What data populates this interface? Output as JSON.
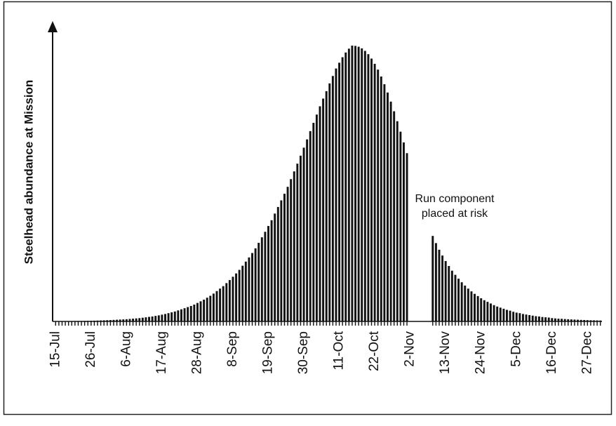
{
  "chart_data": {
    "type": "bar",
    "y_label": "Steelhead abundance at Mission",
    "annotation": [
      "Run component",
      "placed at risk"
    ],
    "color": "#111111",
    "ylim": [
      0,
      100
    ],
    "categories": [
      "15-Jul",
      null,
      null,
      null,
      null,
      null,
      null,
      null,
      null,
      null,
      null,
      "26-Jul",
      null,
      null,
      null,
      null,
      null,
      null,
      null,
      null,
      null,
      null,
      "6-Aug",
      null,
      null,
      null,
      null,
      null,
      null,
      null,
      null,
      null,
      null,
      "17-Aug",
      null,
      null,
      null,
      null,
      null,
      null,
      null,
      null,
      null,
      null,
      "28-Aug",
      null,
      null,
      null,
      null,
      null,
      null,
      null,
      null,
      null,
      null,
      "8-Sep",
      null,
      null,
      null,
      null,
      null,
      null,
      null,
      null,
      null,
      null,
      "19-Sep",
      null,
      null,
      null,
      null,
      null,
      null,
      null,
      null,
      null,
      null,
      "30-Sep",
      null,
      null,
      null,
      null,
      null,
      null,
      null,
      null,
      null,
      null,
      "11-Oct",
      null,
      null,
      null,
      null,
      null,
      null,
      null,
      null,
      null,
      null,
      "22-Oct",
      null,
      null,
      null,
      null,
      null,
      null,
      null,
      null,
      null,
      null,
      "2-Nov",
      null,
      null,
      null,
      null,
      null,
      null,
      null,
      null,
      null,
      null,
      "13-Nov",
      null,
      null,
      null,
      null,
      null,
      null,
      null,
      null,
      null,
      null,
      "24-Nov",
      null,
      null,
      null,
      null,
      null,
      null,
      null,
      null,
      null,
      null,
      "5-Dec",
      null,
      null,
      null,
      null,
      null,
      null,
      null,
      null,
      null,
      null,
      "16-Dec",
      null,
      null,
      null,
      null,
      null,
      null,
      null,
      null,
      null,
      null,
      "27-Dec",
      null,
      null,
      null,
      null
    ],
    "values": [
      0.07,
      0.08,
      0.09,
      0.1,
      0.11,
      0.12,
      0.14,
      0.16,
      0.18,
      0.2,
      0.22,
      0.25,
      0.28,
      0.32,
      0.36,
      0.4,
      0.45,
      0.5,
      0.56,
      0.62,
      0.68,
      0.74,
      0.81,
      0.9,
      1.0,
      1.1,
      1.2,
      1.35,
      1.5,
      1.65,
      1.8,
      2.0,
      2.2,
      2.45,
      2.7,
      3.0,
      3.3,
      3.6,
      4.0,
      4.4,
      4.8,
      5.2,
      5.6,
      6.1,
      6.7,
      7.3,
      7.9,
      8.6,
      9.3,
      10.1,
      11.0,
      11.9,
      12.8,
      13.9,
      15.0,
      16.2,
      17.4,
      18.7,
      20.2,
      21.7,
      23.2,
      24.8,
      26.5,
      28.5,
      30.5,
      32.5,
      34.6,
      36.7,
      39.1,
      41.5,
      43.9,
      46.3,
      48.8,
      51.6,
      54.4,
      57.2,
      60.1,
      63,
      66,
      69,
      72,
      75,
      78,
      80.8,
      83.5,
      86.3,
      89,
      91.7,
      93.8,
      95.8,
      97.5,
      98.9,
      100,
      99.9,
      99.6,
      99.0,
      98.1,
      96.9,
      95.3,
      93.4,
      91.3,
      88.8,
      86,
      83,
      79.7,
      76.2,
      72.6,
      68.8,
      64.9,
      61.0,
      null,
      null,
      null,
      null,
      null,
      null,
      null,
      31,
      28.4,
      26.0,
      23.9,
      21.9,
      20.1,
      18.4,
      16.9,
      15.5,
      14.2,
      13.0,
      11.9,
      10.9,
      10.0,
      9.2,
      8.4,
      7.7,
      7.1,
      6.5,
      5.9,
      5.4,
      5.0,
      4.6,
      4.2,
      3.9,
      3.5,
      3.2,
      3.0,
      2.7,
      2.5,
      2.3,
      2.1,
      1.9,
      1.8,
      1.6,
      1.5,
      1.4,
      1.2,
      1.1,
      1.0,
      0.95,
      0.87,
      0.8,
      0.73,
      0.67,
      0.62,
      0.56,
      0.52,
      0.47,
      0.43,
      0.4,
      0.37,
      0.34
    ]
  }
}
